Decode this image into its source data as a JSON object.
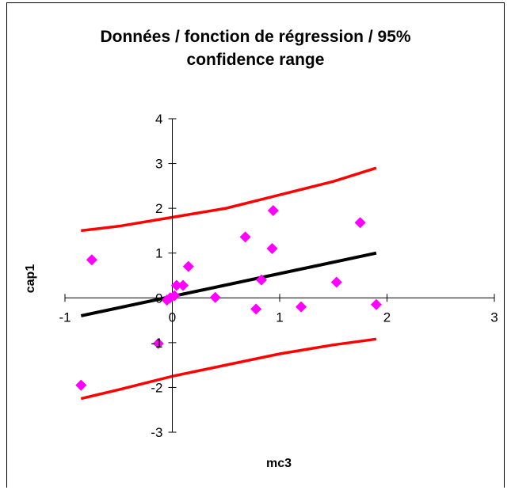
{
  "chart_data": {
    "type": "scatter",
    "title_line1": "Données / fonction de régression / 95%",
    "title_line2": "confidence range",
    "xlabel": "mc3",
    "ylabel": "cap1",
    "xlim": [
      -1,
      3
    ],
    "ylim": [
      -3,
      4
    ],
    "x_ticks": [
      -1,
      0,
      1,
      2,
      3
    ],
    "y_ticks": [
      -3,
      -2,
      -1,
      0,
      1,
      2,
      3,
      4
    ],
    "grid": false,
    "colors": {
      "points": "#ff00ff",
      "regression": "#000000",
      "confidence": "#ff0000"
    },
    "points": [
      {
        "x": -0.85,
        "y": -1.95
      },
      {
        "x": -0.75,
        "y": 0.85
      },
      {
        "x": -0.13,
        "y": -1.02
      },
      {
        "x": -0.05,
        "y": -0.05
      },
      {
        "x": -0.02,
        "y": 0.0
      },
      {
        "x": 0.02,
        "y": 0.05
      },
      {
        "x": 0.04,
        "y": 0.28
      },
      {
        "x": 0.1,
        "y": 0.28
      },
      {
        "x": 0.15,
        "y": 0.7
      },
      {
        "x": 0.4,
        "y": 0.01
      },
      {
        "x": 0.68,
        "y": 1.36
      },
      {
        "x": 0.78,
        "y": -0.25
      },
      {
        "x": 0.83,
        "y": 0.4
      },
      {
        "x": 0.93,
        "y": 1.1
      },
      {
        "x": 0.94,
        "y": 1.95
      },
      {
        "x": 1.2,
        "y": -0.2
      },
      {
        "x": 1.53,
        "y": 0.35
      },
      {
        "x": 1.75,
        "y": 1.68
      },
      {
        "x": 1.9,
        "y": -0.15
      }
    ],
    "regression_line": {
      "x": [
        -0.85,
        1.9
      ],
      "y": [
        -0.4,
        1.0
      ]
    },
    "upper_band": {
      "x": [
        -0.85,
        -0.5,
        0.0,
        0.5,
        1.0,
        1.5,
        1.9
      ],
      "y": [
        1.5,
        1.6,
        1.8,
        2.0,
        2.3,
        2.6,
        2.9
      ]
    },
    "lower_band": {
      "x": [
        -0.85,
        -0.5,
        0.0,
        0.5,
        1.0,
        1.5,
        1.9
      ],
      "y": [
        -2.25,
        -2.05,
        -1.75,
        -1.5,
        -1.25,
        -1.05,
        -0.92
      ]
    }
  }
}
